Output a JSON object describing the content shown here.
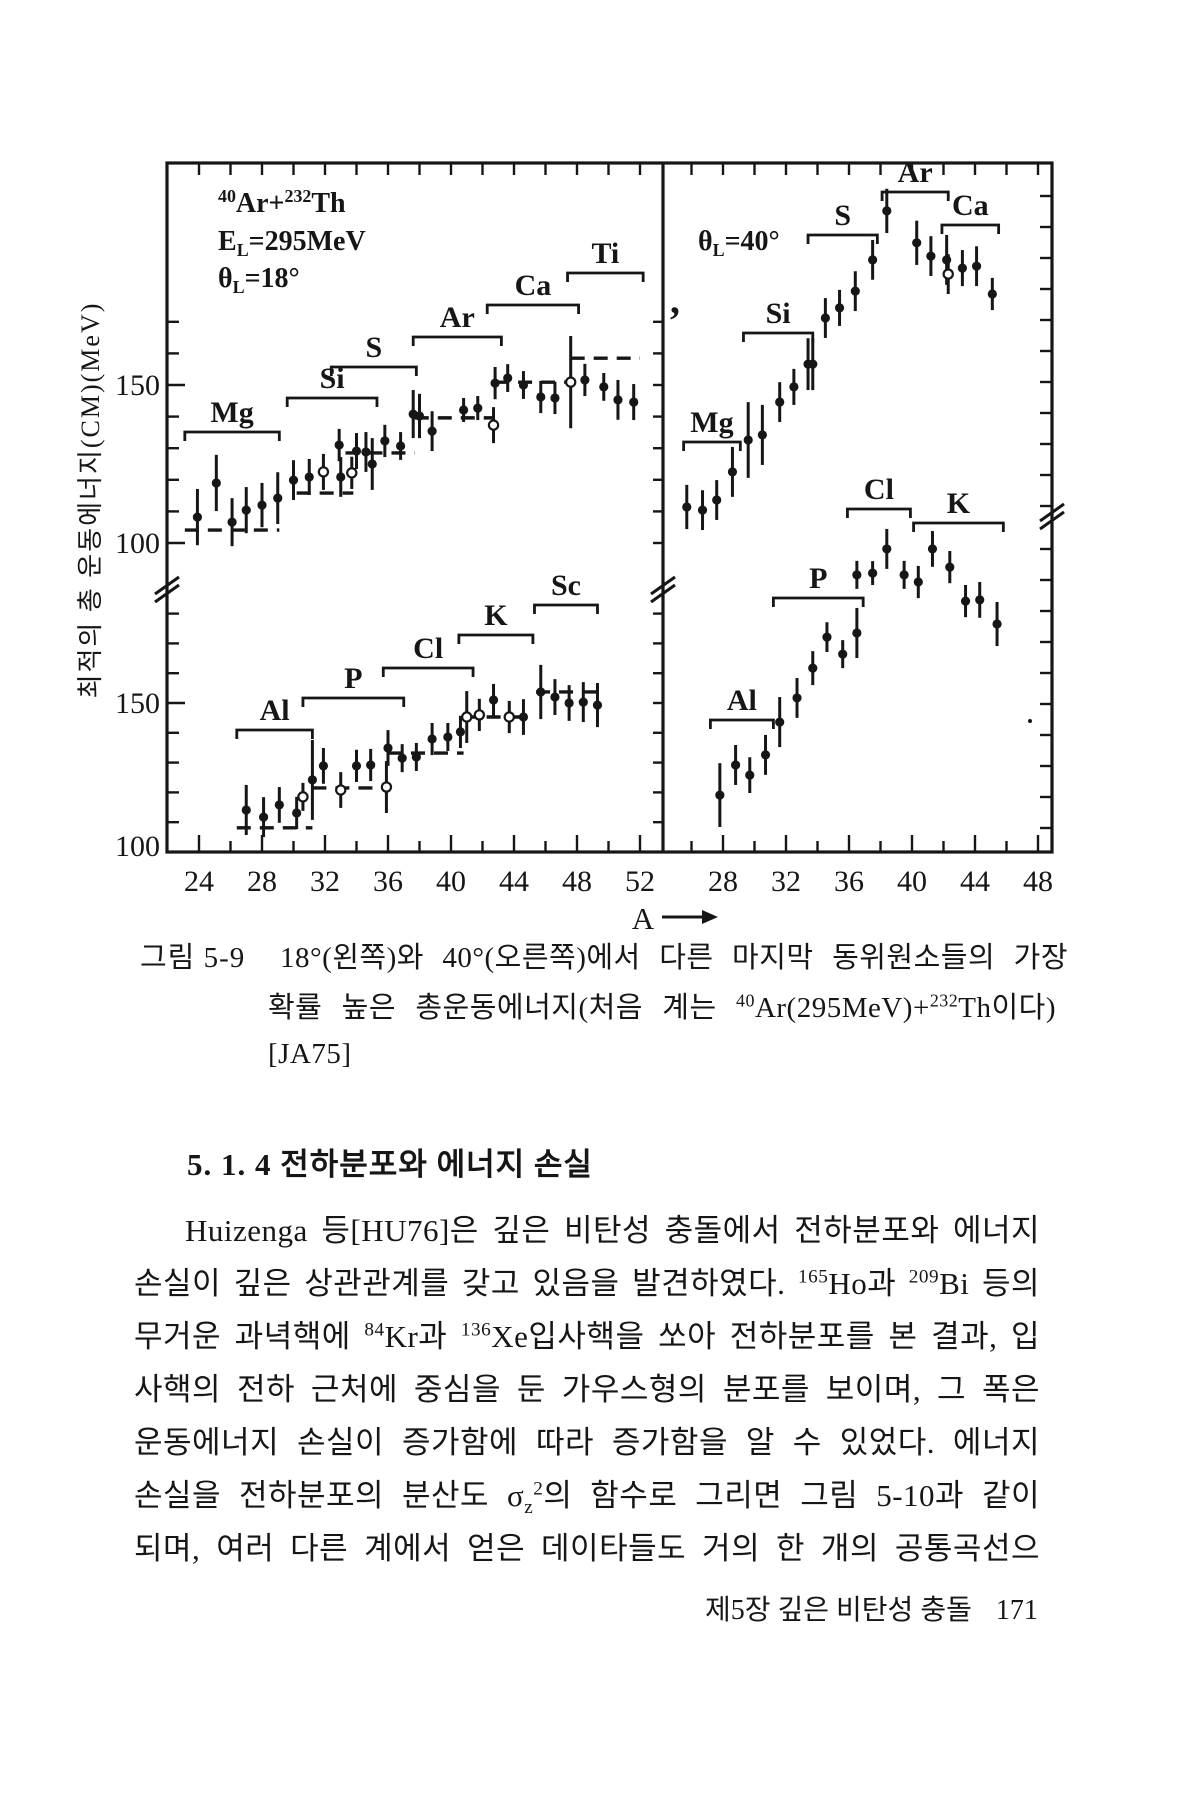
{
  "figure": {
    "y_axis_title": "최적의 총 운동에너지(CM)(MeV)",
    "x_axis_arrow_label": "A",
    "y_tick_labels": {
      "upper_150": "150",
      "upper_100": "100",
      "lower_150": "150",
      "lower_100": "100"
    },
    "left_panel_header": [
      [
        {
          "t": "40",
          "sup": 1
        },
        {
          "t": "Ar+"
        },
        {
          "t": "232",
          "sup": 1
        },
        {
          "t": "Th"
        }
      ],
      [
        {
          "t": "E"
        },
        {
          "t": "L",
          "sub": 1
        },
        {
          "t": "=295MeV"
        }
      ],
      [
        {
          "t": "θ"
        },
        {
          "t": "L",
          "sub": 1
        },
        {
          "t": "=18°"
        }
      ]
    ],
    "right_panel_header": [
      [
        {
          "t": "θ"
        },
        {
          "t": "L",
          "sub": 1
        },
        {
          "t": "=40°"
        }
      ]
    ],
    "left_x_tick_labels": [
      "24",
      "28",
      "32",
      "36",
      "40",
      "44",
      "48",
      "52"
    ],
    "right_x_tick_labels": [
      "28",
      "32",
      "36",
      "40",
      "44",
      "48"
    ]
  },
  "chart_data": [
    {
      "type": "scatter",
      "panel": "left",
      "title": "40Ar+232Th, EL=295MeV, θL=18°",
      "xlabel": "A",
      "ylabel": "최적의 총 운동에너지(CM)(MeV)",
      "x_ticks": [
        24,
        28,
        32,
        36,
        40,
        44,
        48,
        52
      ],
      "series": [
        {
          "name": "Mg",
          "axis": "upper",
          "bracket": {
            "a1": 23.1,
            "a2": 29.1,
            "ypx": 432
          },
          "dash": {
            "a1": 23.1,
            "a2": 29.1,
            "v": 104.1
          },
          "points": [
            [
              23.9,
              108.2,
              8.9
            ],
            [
              25.1,
              119.0,
              8.9
            ],
            [
              26.1,
              106.6,
              7.6
            ],
            [
              27.0,
              110.4,
              7.3
            ],
            [
              28.0,
              112.0,
              7.0
            ],
            [
              29.0,
              114.2,
              8.2
            ]
          ]
        },
        {
          "name": "Si",
          "axis": "upper",
          "bracket": {
            "a1": 29.6,
            "a2": 35.3,
            "ypx": 398
          },
          "dash": {
            "a1": 30.2,
            "a2": 33.8,
            "v": 115.8
          },
          "points": [
            [
              30.0,
              119.9,
              6.3
            ],
            [
              31.0,
              120.9,
              5.7
            ],
            [
              31.9,
              122.5,
              5.7,
              1
            ],
            [
              33.0,
              120.9,
              6.3
            ],
            [
              33.7,
              122.2,
              5.1,
              1
            ]
          ]
        },
        {
          "name": "S",
          "axis": "upper",
          "bracket": {
            "a1": 32.4,
            "a2": 37.8,
            "ypx": 367
          },
          "dash": {
            "a1": 33.3,
            "a2": 37.7,
            "v": 128.5
          },
          "points": [
            [
              32.9,
              131.0,
              5.1
            ],
            [
              34.0,
              129.1,
              5.7
            ],
            [
              34.6,
              128.8,
              6.3
            ],
            [
              35.0,
              125.0,
              8.2
            ],
            [
              35.8,
              132.3,
              5.1
            ],
            [
              36.8,
              130.7,
              4.4
            ]
          ]
        },
        {
          "name": "Ar",
          "axis": "upper",
          "bracket": {
            "a1": 37.6,
            "a2": 43.2,
            "ypx": 337
          },
          "dash": {
            "a1": 37.7,
            "a2": 42.7,
            "v": 139.6
          },
          "points": [
            [
              37.6,
              140.8,
              7.6
            ],
            [
              38.0,
              140.2,
              7.0
            ],
            [
              38.8,
              135.4,
              6.3
            ],
            [
              40.8,
              142.1,
              3.8
            ],
            [
              41.7,
              142.7,
              3.8
            ],
            [
              42.7,
              137.3,
              5.7,
              1
            ]
          ]
        },
        {
          "name": "Ca",
          "axis": "upper",
          "bracket": {
            "a1": 42.3,
            "a2": 48.1,
            "ypx": 305
          },
          "dash": {
            "a1": 42.8,
            "a2": 47.8,
            "v": 150.9
          },
          "points": [
            [
              42.8,
              150.6,
              5.1
            ],
            [
              43.6,
              152.2,
              4.4
            ],
            [
              44.6,
              150.0,
              4.4
            ],
            [
              45.7,
              146.2,
              5.1
            ],
            [
              46.6,
              145.9,
              5.1
            ],
            [
              47.6,
              150.9,
              14.6,
              1
            ]
          ]
        },
        {
          "name": "Ti",
          "axis": "upper",
          "bracket": {
            "a1": 47.4,
            "a2": 52.2,
            "ypx": 273
          },
          "dash": {
            "a1": 47.6,
            "a2": 52.0,
            "v": 158.5
          },
          "points": [
            [
              48.5,
              151.6,
              5.1
            ],
            [
              49.7,
              149.4,
              4.4
            ],
            [
              50.6,
              145.3,
              6.3
            ],
            [
              51.6,
              144.6,
              5.7
            ]
          ]
        },
        {
          "name": "Al",
          "axis": "lower",
          "bracket": {
            "a1": 26.4,
            "a2": 31.2,
            "ypx": 730
          },
          "dash": {
            "a1": 26.4,
            "a2": 31.2,
            "v": 108.1
          },
          "points": [
            [
              27.0,
              114.1,
              8.4
            ],
            [
              28.1,
              111.7,
              6.7
            ],
            [
              29.1,
              115.8,
              6.0
            ],
            [
              30.2,
              113.1,
              5.4
            ],
            [
              30.6,
              118.5,
              4.7,
              1
            ]
          ]
        },
        {
          "name": "P",
          "axis": "lower",
          "bracket": {
            "a1": 30.6,
            "a2": 37.0,
            "ypx": 698
          },
          "dash": {
            "a1": 31.2,
            "a2": 36.0,
            "v": 121.5
          },
          "points": [
            [
              31.2,
              124.2,
              13.4
            ],
            [
              31.9,
              128.9,
              6.0
            ],
            [
              33.0,
              120.8,
              6.0,
              1
            ],
            [
              34.0,
              128.9,
              5.4
            ],
            [
              34.9,
              129.2,
              5.4
            ],
            [
              35.9,
              121.8,
              8.7,
              1
            ]
          ]
        },
        {
          "name": "Cl",
          "axis": "lower",
          "bracket": {
            "a1": 35.7,
            "a2": 41.4,
            "ypx": 668
          },
          "dash": {
            "a1": 36.0,
            "a2": 40.8,
            "v": 133.2
          },
          "points": [
            [
              36.0,
              134.9,
              6.0
            ],
            [
              36.9,
              131.5,
              4.7
            ],
            [
              37.8,
              131.9,
              4.7
            ],
            [
              38.8,
              137.9,
              5.4
            ],
            [
              39.8,
              138.6,
              4.7
            ],
            [
              40.6,
              140.3,
              5.4
            ]
          ]
        },
        {
          "name": "K",
          "axis": "lower",
          "bracket": {
            "a1": 40.5,
            "a2": 45.2,
            "ypx": 635
          },
          "dash": {
            "a1": 40.8,
            "a2": 44.9,
            "v": 145.3
          },
          "points": [
            [
              41.0,
              145.3,
              8.7,
              1
            ],
            [
              41.8,
              146.0,
              5.4,
              1
            ],
            [
              42.7,
              151.0,
              5.4
            ],
            [
              43.7,
              145.3,
              5.4,
              1
            ],
            [
              44.6,
              145.3,
              6.0
            ]
          ]
        },
        {
          "name": "Sc",
          "axis": "lower",
          "bracket": {
            "a1": 45.3,
            "a2": 49.3,
            "ypx": 605
          },
          "dash": {
            "a1": 45.4,
            "a2": 49.3,
            "v": 153.7
          },
          "points": [
            [
              45.7,
              153.7,
              9.1
            ],
            [
              46.6,
              152.0,
              6.0
            ],
            [
              47.5,
              150.0,
              6.0
            ],
            [
              48.4,
              150.3,
              6.7
            ],
            [
              49.3,
              149.3,
              7.4
            ]
          ]
        }
      ]
    },
    {
      "type": "scatter",
      "panel": "right",
      "title": "θL=40°",
      "xlabel": "A",
      "ylabel": "최적의 총 운동에너지(CM)(MeV)",
      "x_ticks": [
        28,
        32,
        36,
        40,
        44,
        48
      ],
      "series": [
        {
          "name": "Mg",
          "axis": "upper",
          "bracket": {
            "a1": 25.5,
            "a2": 29.1,
            "ypx": 442
          },
          "dash": null,
          "points": [
            [
              25.7,
              111.4,
              7.0
            ],
            [
              26.7,
              110.4,
              6.3
            ],
            [
              27.6,
              113.6,
              6.3
            ],
            [
              28.6,
              122.5,
              7.9
            ]
          ]
        },
        {
          "name": "Si",
          "axis": "upper",
          "bracket": {
            "a1": 29.3,
            "a2": 33.7,
            "ypx": 333
          },
          "dash": null,
          "points": [
            [
              29.6,
              132.6,
              12.0
            ],
            [
              30.5,
              134.2,
              9.5
            ],
            [
              31.6,
              144.6,
              6.3
            ],
            [
              32.5,
              149.4,
              5.7
            ],
            [
              33.4,
              156.6,
              8.2
            ],
            [
              33.7,
              156.6,
              8.2
            ]
          ]
        },
        {
          "name": "S",
          "axis": "upper",
          "bracket": {
            "a1": 33.4,
            "a2": 37.8,
            "ypx": 235
          },
          "dash": null,
          "points": [
            [
              34.5,
              171.2,
              6.3
            ],
            [
              35.4,
              174.4,
              5.7
            ],
            [
              36.4,
              179.7,
              6.3
            ],
            [
              37.5,
              189.6,
              6.3
            ]
          ]
        },
        {
          "name": "Ar",
          "axis": "upper",
          "bracket": {
            "a1": 38.1,
            "a2": 42.3,
            "ypx": 192
          },
          "dash": null,
          "points": [
            [
              38.4,
              205.1,
              7.0
            ],
            [
              40.3,
              195.0,
              7.0
            ],
            [
              41.2,
              190.8,
              6.3
            ],
            [
              42.2,
              189.6,
              7.9
            ]
          ]
        },
        {
          "name": "Ca",
          "axis": "upper",
          "bracket": {
            "a1": 41.9,
            "a2": 45.5,
            "ypx": 225
          },
          "dash": null,
          "points": [
            [
              42.3,
              185.1,
              6.3,
              1
            ],
            [
              43.2,
              187.0,
              5.7
            ],
            [
              44.1,
              187.6,
              6.3
            ],
            [
              45.1,
              178.8,
              5.1
            ]
          ]
        },
        {
          "name": "Al",
          "axis": "lower",
          "bracket": {
            "a1": 27.2,
            "a2": 31.2,
            "ypx": 720
          },
          "dash": null,
          "points": [
            [
              27.8,
              119.1,
              10.7
            ],
            [
              28.8,
              129.2,
              6.7
            ],
            [
              29.7,
              125.8,
              6.0
            ],
            [
              30.7,
              132.6,
              6.7
            ],
            [
              31.6,
              143.6,
              8.4
            ]
          ]
        },
        {
          "name": "P",
          "axis": "lower",
          "bracket": {
            "a1": 31.2,
            "a2": 36.9,
            "ypx": 598
          },
          "dash": null,
          "points": [
            [
              32.7,
              151.7,
              6.7
            ],
            [
              33.7,
              161.7,
              5.7
            ],
            [
              34.6,
              172.1,
              5.0
            ],
            [
              35.6,
              166.4,
              4.7
            ],
            [
              36.5,
              173.5,
              8.4
            ]
          ]
        },
        {
          "name": "Cl",
          "axis": "lower",
          "bracket": {
            "a1": 35.9,
            "a2": 39.9,
            "ypx": 509
          },
          "dash": null,
          "points": [
            [
              36.5,
              193.0,
              4.7
            ],
            [
              37.5,
              193.6,
              4.0
            ],
            [
              38.4,
              201.7,
              6.7
            ],
            [
              39.5,
              193.0,
              4.7
            ],
            [
              40.4,
              190.6,
              5.4
            ]
          ]
        },
        {
          "name": "K",
          "axis": "lower",
          "bracket": {
            "a1": 40.1,
            "a2": 45.8,
            "ypx": 523
          },
          "dash": null,
          "points": [
            [
              41.3,
              201.7,
              6.0
            ],
            [
              42.4,
              195.6,
              5.4
            ],
            [
              43.4,
              184.2,
              5.4
            ],
            [
              44.3,
              184.6,
              6.0
            ],
            [
              45.4,
              176.5,
              7.4
            ]
          ]
        }
      ]
    }
  ],
  "caption": {
    "label": "그림 5-9",
    "line1": [
      {
        "t": "18°(왼쪽)와  40°(오른쪽)에서  다른  마지막  동위원소들의  가장"
      }
    ],
    "line2": [
      {
        "t": "확률  높은  총운동에너지(처음  계는  "
      },
      {
        "t": "40",
        "sup": 1
      },
      {
        "t": "Ar(295MeV)+"
      },
      {
        "t": "232",
        "sup": 1
      },
      {
        "t": "Th이다)"
      }
    ],
    "line3": "[JA75]"
  },
  "section_heading": "5. 1. 4   전하분포와 에너지 손실",
  "body_lines": [
    [
      {
        "t": "Huizenga 등[HU76]은 깊은 비탄성 충돌에서 전하분포와 에너지"
      }
    ],
    [
      {
        "t": "손실이 깊은 상관관계를 갖고 있음을 발견하였다. "
      },
      {
        "t": "165",
        "sup": 1
      },
      {
        "t": "Ho과 "
      },
      {
        "t": "209",
        "sup": 1
      },
      {
        "t": "Bi 등의"
      }
    ],
    [
      {
        "t": "무거운 과녁핵에 "
      },
      {
        "t": "84",
        "sup": 1
      },
      {
        "t": "Kr과 "
      },
      {
        "t": "136",
        "sup": 1
      },
      {
        "t": "Xe입사핵을 쏘아 전하분포를 본 결과, 입"
      }
    ],
    [
      {
        "t": "사핵의 전하 근처에 중심을 둔 가우스형의 분포를 보이며, 그 폭은"
      }
    ],
    [
      {
        "t": "운동에너지 손실이 증가함에 따라 증가함을 알 수 있었다. 에너지"
      }
    ],
    [
      {
        "t": "손실을 전하분포의 분산도 σ"
      },
      {
        "t": "z",
        "sub": 1
      },
      {
        "t": "2",
        "sup": 1
      },
      {
        "t": "의 함수로 그리면 그림 5-10과 같이"
      }
    ],
    [
      {
        "t": "되며, 여러 다른 계에서 얻은 데이타들도 거의 한 개의 공통곡선으"
      }
    ]
  ],
  "footer": {
    "chapter": "제5장 깊은 비탄성 충돌",
    "page_number": "171"
  }
}
